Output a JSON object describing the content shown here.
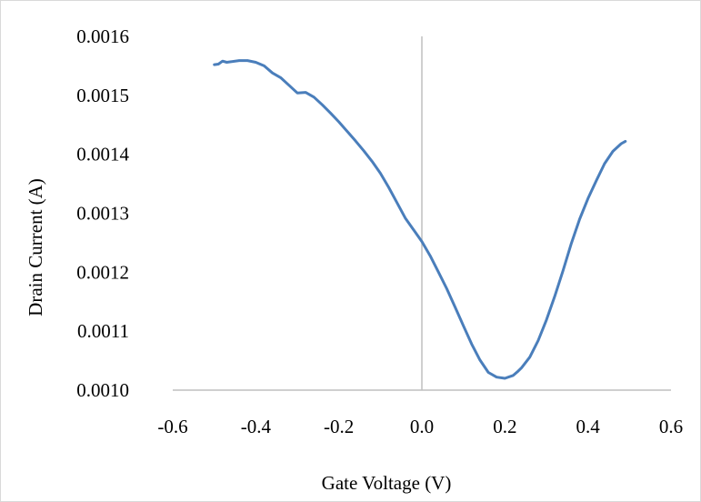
{
  "chart_data": {
    "type": "line",
    "title": "",
    "xlabel": "Gate Voltage (V)",
    "ylabel": "Drain Current (A)",
    "xlim": [
      -0.6,
      0.6
    ],
    "ylim": [
      0.001,
      0.0016
    ],
    "x_ticks": [
      -0.6,
      -0.4,
      -0.2,
      0.0,
      0.2,
      0.4,
      0.6
    ],
    "x_tick_labels": [
      "-0.6",
      "-0.4",
      "-0.2",
      "0.0",
      "0.2",
      "0.4",
      "0.6"
    ],
    "y_ticks": [
      0.001,
      0.0011,
      0.0012,
      0.0013,
      0.0014,
      0.0015,
      0.0016
    ],
    "y_tick_labels": [
      "0.0010",
      "0.0011",
      "0.0012",
      "0.0013",
      "0.0014",
      "0.0015",
      "0.0016"
    ],
    "grid": false,
    "legend": "none",
    "series": [
      {
        "color": "#4a7ebb",
        "x": [
          -0.5,
          -0.49,
          -0.48,
          -0.47,
          -0.46,
          -0.44,
          -0.42,
          -0.4,
          -0.38,
          -0.36,
          -0.34,
          -0.32,
          -0.3,
          -0.28,
          -0.26,
          -0.24,
          -0.22,
          -0.2,
          -0.18,
          -0.16,
          -0.14,
          -0.12,
          -0.1,
          -0.08,
          -0.06,
          -0.04,
          -0.02,
          0.0,
          0.02,
          0.04,
          0.06,
          0.08,
          0.1,
          0.12,
          0.14,
          0.16,
          0.18,
          0.2,
          0.22,
          0.23,
          0.24,
          0.26,
          0.28,
          0.3,
          0.32,
          0.34,
          0.36,
          0.38,
          0.4,
          0.42,
          0.44,
          0.46,
          0.48,
          0.49
        ],
        "y": [
          0.001552,
          0.001553,
          0.001558,
          0.001556,
          0.001557,
          0.001559,
          0.001559,
          0.001556,
          0.00155,
          0.001538,
          0.00153,
          0.001517,
          0.001504,
          0.001505,
          0.001497,
          0.001484,
          0.00147,
          0.001455,
          0.001439,
          0.001423,
          0.001406,
          0.001388,
          0.001368,
          0.001344,
          0.001318,
          0.001292,
          0.001272,
          0.001252,
          0.001228,
          0.0012,
          0.001172,
          0.001141,
          0.001109,
          0.001078,
          0.001051,
          0.00103,
          0.001022,
          0.00102,
          0.001025,
          0.001031,
          0.001038,
          0.001056,
          0.001084,
          0.001119,
          0.001159,
          0.001203,
          0.001249,
          0.00129,
          0.001325,
          0.001355,
          0.001384,
          0.001405,
          0.001418,
          0.001422
        ]
      }
    ]
  }
}
